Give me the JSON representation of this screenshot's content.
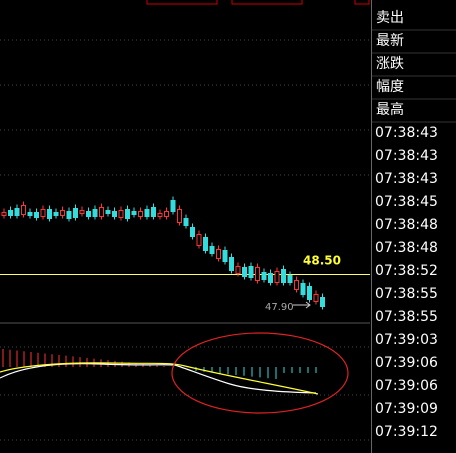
{
  "quote_panel": {
    "labels": [
      "卖出",
      "最新",
      "涨跌",
      "幅度",
      "最高"
    ],
    "times": [
      "07:38:43",
      "07:38:43",
      "07:38:43",
      "07:38:45",
      "07:38:48",
      "07:38:48",
      "07:38:52",
      "07:38:55",
      "07:38:55",
      "07:39:03",
      "07:39:06",
      "07:39:06",
      "07:39:09",
      "07:39:12"
    ]
  },
  "price_chart": {
    "current_price_label": "48.50",
    "low_price_label": "47.90"
  }
}
